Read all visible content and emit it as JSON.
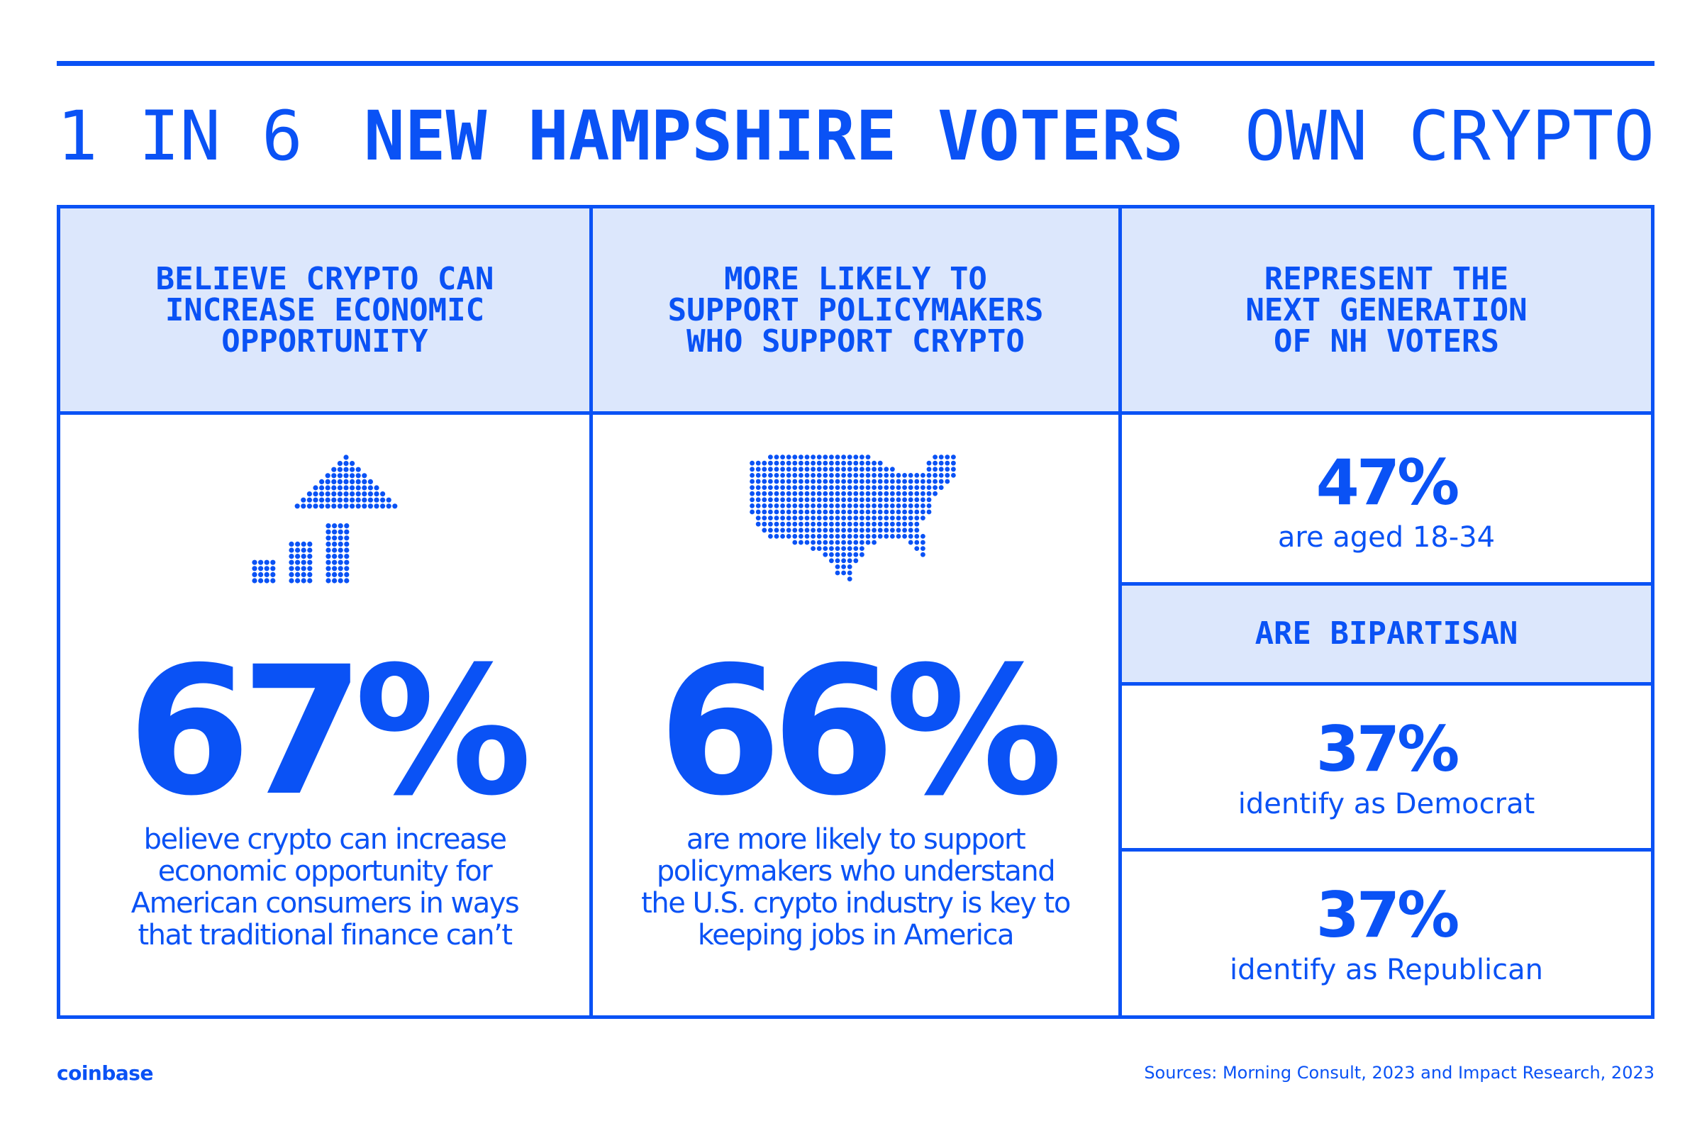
{
  "headline": {
    "part1": "1 IN 6",
    "part2": "NEW HAMPSHIRE VOTERS",
    "part3": "OWN CRYPTO"
  },
  "columns": [
    {
      "header": "BELIEVE CRYPTO CAN\nINCREASE ECONOMIC\nOPPORTUNITY",
      "icon": "rising-bars-arrow-icon",
      "value": "67%",
      "description": "believe crypto can increase\neconomic opportunity for\nAmerican consumers in ways\nthat traditional finance can’t"
    },
    {
      "header": "MORE LIKELY TO\nSUPPORT POLICYMAKERS\nWHO SUPPORT CRYPTO",
      "icon": "us-map-icon",
      "value": "66%",
      "description": "are more likely to support\npolicymakers who understand\nthe U.S. crypto industry is key to\nkeeping jobs in America"
    }
  ],
  "right_column": {
    "header": "REPRESENT THE\nNEXT GENERATION\nOF NH VOTERS",
    "age_stat": {
      "value": "47%",
      "label": "are aged 18-34"
    },
    "bipartisan_header": "ARE BIPARTISAN",
    "democrat_stat": {
      "value": "37%",
      "label": "identify as Democrat"
    },
    "republican_stat": {
      "value": "37%",
      "label": "identify as Republican"
    }
  },
  "footer": {
    "logo": "coinbase",
    "sources": "Sources: Morning Consult, 2023 and Impact Research, 2023"
  },
  "colors": {
    "accent": "#0a52f5",
    "header_bg": "#dce7fc",
    "background": "#ffffff"
  }
}
